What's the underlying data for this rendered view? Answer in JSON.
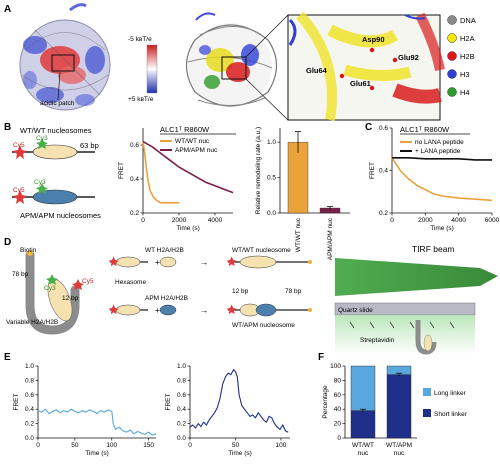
{
  "panels": {
    "A": {
      "letter": "A",
      "acidic_patch": "acidic patch",
      "scale_top": "-5 kʙT/e",
      "scale_bottom": "+5 kʙT/e",
      "residues": [
        "Asp90",
        "Glu92",
        "Glu64",
        "Glu61"
      ],
      "legend": [
        {
          "label": "DNA",
          "color": "#8a8a8a"
        },
        {
          "label": "H2A",
          "color": "#f2e600"
        },
        {
          "label": "H2B",
          "color": "#e0141a"
        },
        {
          "label": "H3",
          "color": "#2f3fd6"
        },
        {
          "label": "H4",
          "color": "#2e9a2a"
        }
      ]
    },
    "B": {
      "letter": "B",
      "wtwt_title": "WT/WT nucleosomes",
      "apm_title": "APM/APM nucleosomes",
      "cy5": "Cy5",
      "cy3": "Cy3",
      "linker": "63 bp",
      "chart_title": "ALC1ᵀ R860W",
      "legend": [
        "WT/WT nuc",
        "APM/APM nuc"
      ],
      "bar_cats": [
        "WT/WT nuc",
        "APM/APM nuc"
      ]
    },
    "C": {
      "letter": "C",
      "chart_title": "ALC1ᵀ R860W",
      "legend": [
        "no LANA peptide",
        "+ LANA peptide"
      ]
    },
    "D": {
      "letter": "D",
      "biotin": "Biotin",
      "bp78": "78 bp",
      "bp12": "12 bp",
      "cy3": "Cy3",
      "cy5": "Cy5",
      "variable": "Variable H2A/H2B",
      "wt_h2a": "WT H2A/H2B",
      "apm_h2a": "APM H2A/H2B",
      "hexasome": "Hexasome",
      "wtwt_nuc": "WT/WT nucleosome",
      "wtapm_nuc": "WT/APM nucleosome",
      "plus": "+",
      "arrow": "→",
      "tirf": "TIRF beam",
      "quartz": "Quartz slide",
      "streptavidin": "Streptavidin"
    },
    "E": {
      "letter": "E"
    },
    "F": {
      "letter": "F",
      "legend": [
        "Long linker",
        "Short linker"
      ]
    }
  },
  "colors": {
    "orange": "#e9a33a",
    "purple": "#7a1f4a",
    "lightblue": "#5aa7dd",
    "navy": "#1f2f8a",
    "gray": "#444444"
  },
  "chart_data": [
    {
      "panel": "B-left",
      "type": "line",
      "xlabel": "Time (s)",
      "ylabel": "FRET",
      "xlim": [
        0,
        5000
      ],
      "ylim": [
        0.2,
        0.7
      ],
      "xticks": [
        0,
        2000,
        4000
      ],
      "yticks": [
        0.2,
        0.4,
        0.6
      ],
      "series": [
        {
          "name": "WT/WT nuc",
          "x": [
            0,
            100,
            200,
            300,
            400,
            600,
            800,
            1000,
            1500,
            2000
          ],
          "y": [
            0.62,
            0.55,
            0.45,
            0.38,
            0.33,
            0.29,
            0.27,
            0.26,
            0.26,
            0.26
          ]
        },
        {
          "name": "APM/APM nuc",
          "x": [
            0,
            500,
            1000,
            1500,
            2000,
            2500,
            3000,
            3500,
            4000,
            4500,
            5000
          ],
          "y": [
            0.62,
            0.59,
            0.55,
            0.51,
            0.47,
            0.44,
            0.41,
            0.38,
            0.36,
            0.34,
            0.32
          ]
        }
      ]
    },
    {
      "panel": "B-right",
      "type": "bar",
      "ylabel": "Relative remodeling rate (a.u.)",
      "ylim": [
        0,
        1.2
      ],
      "yticks": [
        0,
        0.5,
        1.0
      ],
      "categories": [
        "WT/WT nuc",
        "APM/APM nuc"
      ],
      "values": [
        1.0,
        0.07
      ],
      "errors": [
        0.15,
        0.02
      ]
    },
    {
      "panel": "C",
      "type": "line",
      "xlabel": "Time (s)",
      "ylabel": "FRET",
      "xlim": [
        0,
        6000
      ],
      "ylim": [
        0.2,
        0.6
      ],
      "xticks": [
        0,
        2000,
        4000,
        6000
      ],
      "yticks": [
        0.2,
        0.4,
        0.6
      ],
      "series": [
        {
          "name": "no LANA peptide",
          "x": [
            0,
            500,
            1000,
            1500,
            2000,
            2500,
            3000,
            4000,
            5000,
            6000
          ],
          "y": [
            0.46,
            0.4,
            0.36,
            0.33,
            0.31,
            0.29,
            0.28,
            0.27,
            0.265,
            0.26
          ]
        },
        {
          "name": "+ LANA peptide",
          "x": [
            0,
            1000,
            2000,
            3000,
            4000,
            5000,
            6000
          ],
          "y": [
            0.46,
            0.46,
            0.455,
            0.455,
            0.455,
            0.45,
            0.45
          ]
        }
      ]
    },
    {
      "panel": "E-left",
      "type": "line",
      "xlabel": "Time (s)",
      "ylabel": "FRET",
      "xlim": [
        0,
        160
      ],
      "ylim": [
        0,
        1.0
      ],
      "xticks": [
        0,
        50,
        100,
        150
      ],
      "yticks": [
        0,
        0.2,
        0.4,
        0.6,
        0.8,
        1.0
      ],
      "series": [
        {
          "name": "",
          "x": [
            0,
            5,
            10,
            15,
            20,
            25,
            30,
            35,
            40,
            45,
            50,
            55,
            60,
            65,
            70,
            75,
            80,
            85,
            90,
            95,
            100,
            102,
            105,
            110,
            115,
            120,
            125,
            130,
            135,
            140,
            145,
            150,
            155,
            160
          ],
          "y": [
            0.38,
            0.36,
            0.4,
            0.34,
            0.37,
            0.39,
            0.35,
            0.38,
            0.36,
            0.4,
            0.37,
            0.35,
            0.38,
            0.36,
            0.39,
            0.37,
            0.34,
            0.38,
            0.36,
            0.39,
            0.37,
            0.2,
            0.12,
            0.15,
            0.1,
            0.08,
            0.11,
            0.06,
            0.09,
            0.07,
            0.05,
            0.08,
            0.04,
            0.06
          ]
        }
      ]
    },
    {
      "panel": "E-right",
      "type": "line",
      "xlabel": "Time (s)",
      "ylabel": "FRET",
      "xlim": [
        0,
        110
      ],
      "ylim": [
        0,
        1.0
      ],
      "xticks": [
        0,
        50,
        100
      ],
      "yticks": [
        0,
        0.2,
        0.4,
        0.6,
        0.8,
        1.0
      ],
      "series": [
        {
          "name": "",
          "x": [
            0,
            3,
            6,
            9,
            12,
            15,
            18,
            21,
            24,
            27,
            30,
            33,
            36,
            39,
            42,
            45,
            48,
            50,
            52,
            54,
            57,
            60,
            63,
            66,
            69,
            72,
            75,
            78,
            81,
            84,
            87,
            90,
            93,
            96,
            99,
            102,
            105,
            108
          ],
          "y": [
            0.15,
            0.18,
            0.14,
            0.2,
            0.16,
            0.22,
            0.18,
            0.25,
            0.3,
            0.35,
            0.42,
            0.55,
            0.75,
            0.85,
            0.9,
            0.88,
            0.95,
            0.92,
            0.85,
            0.6,
            0.45,
            0.4,
            0.35,
            0.3,
            0.32,
            0.28,
            0.35,
            0.3,
            0.25,
            0.22,
            0.3,
            0.28,
            0.2,
            0.15,
            0.12,
            0.18,
            0.1,
            0.08
          ]
        }
      ]
    },
    {
      "panel": "F",
      "type": "bar",
      "ylabel": "Percentage",
      "ylim": [
        0,
        100
      ],
      "yticks": [
        0,
        20,
        40,
        60,
        80,
        100
      ],
      "categories": [
        "WT/WT nuc",
        "WT/APM nuc"
      ],
      "series": [
        {
          "name": "Short linker",
          "values": [
            38,
            88
          ]
        },
        {
          "name": "Long linker",
          "values": [
            62,
            12
          ]
        }
      ]
    }
  ]
}
